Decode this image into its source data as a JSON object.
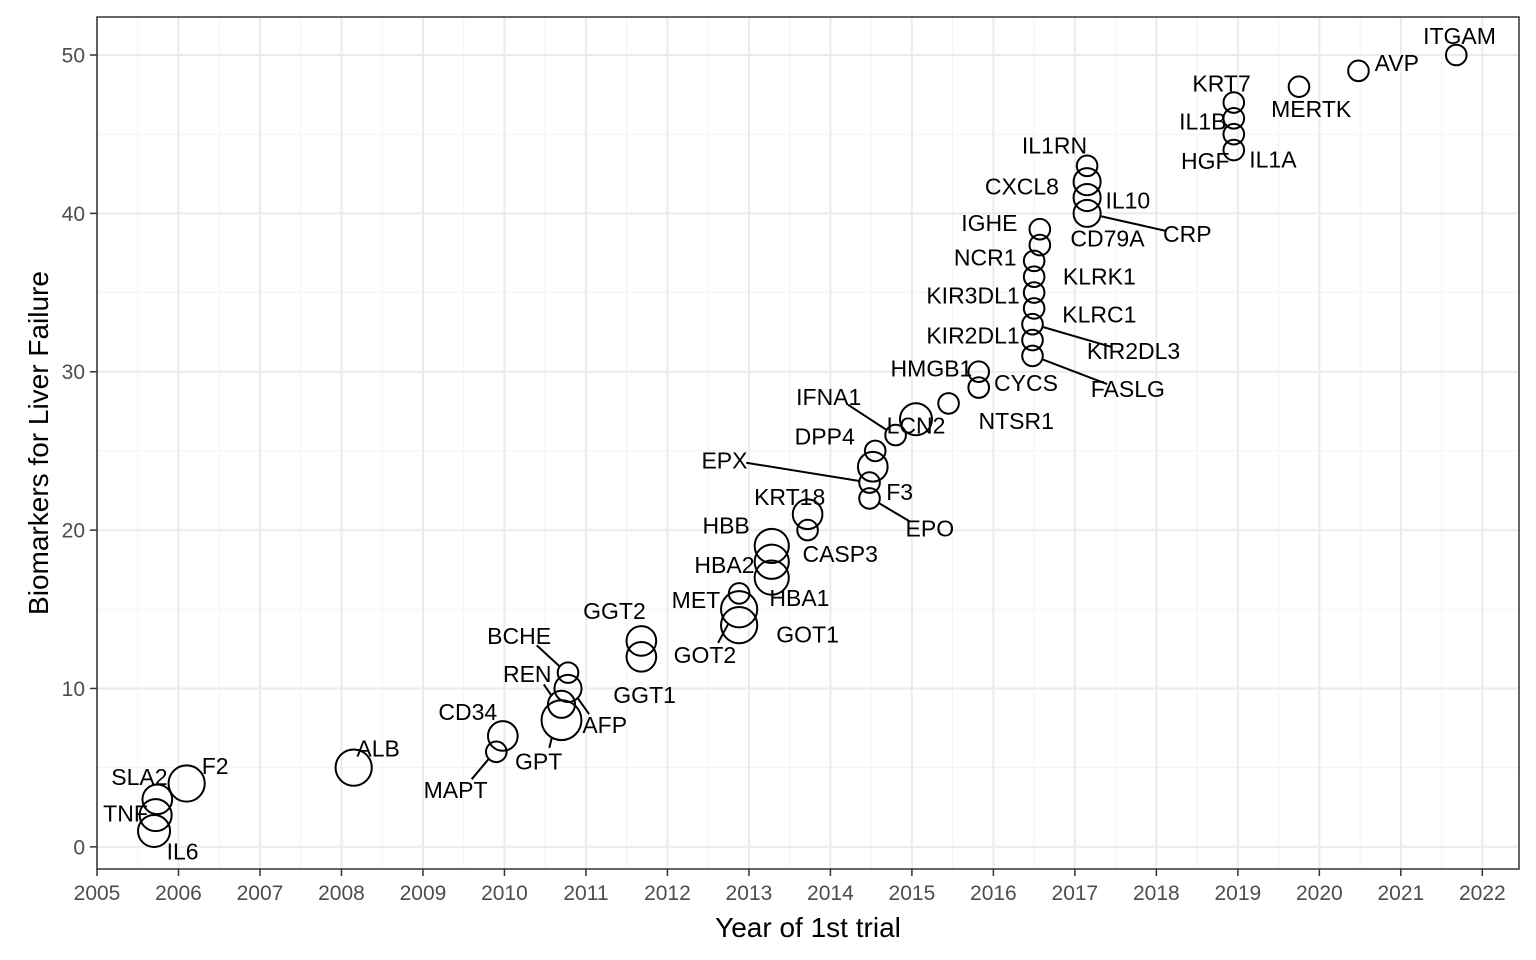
{
  "chart_data": {
    "type": "scatter",
    "xlabel": "Year of 1st trial",
    "ylabel": "Biomarkers for Liver Failure",
    "xlim": [
      2005,
      2022.45
    ],
    "ylim": [
      -1.4,
      52.4
    ],
    "x_ticks": [
      2005,
      2006,
      2007,
      2008,
      2009,
      2010,
      2011,
      2012,
      2013,
      2014,
      2015,
      2016,
      2017,
      2018,
      2019,
      2020,
      2021,
      2022
    ],
    "y_ticks": [
      0,
      10,
      20,
      30,
      40,
      50
    ],
    "grid": true,
    "point_size_meaning": "relative marker size",
    "points": [
      {
        "label": "IL6",
        "x": 2005.7,
        "y": 1,
        "size": 3,
        "lx": 2006.05,
        "ly": -0.3,
        "anchor": "middle"
      },
      {
        "label": "TNF",
        "x": 2005.72,
        "y": 2,
        "size": 3,
        "lx": 2005.35,
        "ly": 2.1,
        "anchor": "middle"
      },
      {
        "label": "SLA2",
        "x": 2005.74,
        "y": 3,
        "size": 2.5,
        "lx": 2005.52,
        "ly": 4.4,
        "anchor": "middle"
      },
      {
        "label": "F2",
        "x": 2006.1,
        "y": 4,
        "size": 4,
        "lx": 2006.45,
        "ly": 5.1,
        "anchor": "middle"
      },
      {
        "label": "ALB",
        "x": 2008.15,
        "y": 5,
        "size": 4,
        "lx": 2008.45,
        "ly": 6.2,
        "anchor": "middle"
      },
      {
        "label": "MAPT",
        "x": 2009.9,
        "y": 6,
        "size": 1,
        "lx": 2009.4,
        "ly": 3.6,
        "anchor": "middle",
        "leader": true
      },
      {
        "label": "CD34",
        "x": 2009.98,
        "y": 7,
        "size": 2.5,
        "lx": 2009.55,
        "ly": 8.5,
        "anchor": "middle"
      },
      {
        "label": "GPT",
        "x": 2010.7,
        "y": 8,
        "size": 5,
        "lx": 2010.42,
        "ly": 5.4,
        "anchor": "middle",
        "leader": true
      },
      {
        "label": "REN",
        "x": 2010.7,
        "y": 9,
        "size": 2,
        "lx": 2010.28,
        "ly": 10.9,
        "anchor": "middle",
        "leader": true
      },
      {
        "label": "AFP",
        "x": 2010.78,
        "y": 10,
        "size": 2,
        "lx": 2011.23,
        "ly": 7.7,
        "anchor": "middle",
        "leader": true
      },
      {
        "label": "BCHE",
        "x": 2010.78,
        "y": 11,
        "size": 1,
        "lx": 2010.18,
        "ly": 13.3,
        "anchor": "middle",
        "leader": true
      },
      {
        "label": "GGT1",
        "x": 2011.68,
        "y": 12,
        "size": 2.5,
        "lx": 2011.72,
        "ly": 9.6,
        "anchor": "middle"
      },
      {
        "label": "GGT2",
        "x": 2011.68,
        "y": 13,
        "size": 2.5,
        "lx": 2011.35,
        "ly": 14.9,
        "anchor": "middle"
      },
      {
        "label": "GOT1",
        "x": 2012.88,
        "y": 14,
        "size": 4,
        "lx": 2013.72,
        "ly": 13.4,
        "anchor": "middle"
      },
      {
        "label": "GOT2",
        "x": 2012.88,
        "y": 15,
        "size": 4,
        "lx": 2012.46,
        "ly": 12.1,
        "anchor": "middle",
        "leader": true
      },
      {
        "label": "MET",
        "x": 2012.88,
        "y": 16,
        "size": 1,
        "lx": 2012.35,
        "ly": 15.6,
        "anchor": "middle"
      },
      {
        "label": "HBA1",
        "x": 2013.28,
        "y": 17,
        "size": 3.5,
        "lx": 2013.62,
        "ly": 15.7,
        "anchor": "middle"
      },
      {
        "label": "HBA2",
        "x": 2013.28,
        "y": 18,
        "size": 3.5,
        "lx": 2012.7,
        "ly": 17.8,
        "anchor": "middle"
      },
      {
        "label": "HBB",
        "x": 2013.28,
        "y": 19,
        "size": 3.5,
        "lx": 2012.72,
        "ly": 20.3,
        "anchor": "middle"
      },
      {
        "label": "CASP3",
        "x": 2013.72,
        "y": 20,
        "size": 1,
        "lx": 2014.12,
        "ly": 18.5,
        "anchor": "middle"
      },
      {
        "label": "KRT18",
        "x": 2013.72,
        "y": 21,
        "size": 2.5,
        "lx": 2013.5,
        "ly": 22.1,
        "anchor": "middle"
      },
      {
        "label": "EPO",
        "x": 2014.48,
        "y": 22,
        "size": 1,
        "lx": 2015.22,
        "ly": 20.1,
        "anchor": "middle",
        "leader": true
      },
      {
        "label": "EPX",
        "x": 2014.48,
        "y": 23,
        "size": 1,
        "lx": 2012.7,
        "ly": 24.4,
        "anchor": "middle",
        "leader": true
      },
      {
        "label": "F3",
        "x": 2014.52,
        "y": 24,
        "size": 2.5,
        "lx": 2014.85,
        "ly": 22.4,
        "anchor": "middle"
      },
      {
        "label": "DPP4",
        "x": 2014.55,
        "y": 25,
        "size": 1,
        "lx": 2013.93,
        "ly": 25.9,
        "anchor": "middle"
      },
      {
        "label": "IFNA1",
        "x": 2014.8,
        "y": 26,
        "size": 1,
        "lx": 2013.98,
        "ly": 28.4,
        "anchor": "middle",
        "leader": true
      },
      {
        "label": "LCN2",
        "x": 2015.05,
        "y": 27,
        "size": 3,
        "lx": 2015.05,
        "ly": 26.6,
        "anchor": "middle"
      },
      {
        "label": "NTSR1",
        "x": 2015.45,
        "y": 28,
        "size": 1,
        "lx": 2016.28,
        "ly": 26.9,
        "anchor": "middle"
      },
      {
        "label": "CYCS",
        "x": 2015.82,
        "y": 29,
        "size": 1,
        "lx": 2016.4,
        "ly": 29.3,
        "anchor": "middle"
      },
      {
        "label": "HMGB1",
        "x": 2015.82,
        "y": 30,
        "size": 1,
        "lx": 2015.24,
        "ly": 30.2,
        "anchor": "middle"
      },
      {
        "label": "FASLG",
        "x": 2016.48,
        "y": 31,
        "size": 1,
        "lx": 2017.65,
        "ly": 28.9,
        "anchor": "middle",
        "leader": true
      },
      {
        "label": "KIR2DL3",
        "x": 2016.48,
        "y": 33,
        "size": 1,
        "lx": 2017.72,
        "ly": 31.3,
        "anchor": "middle",
        "leader": true
      },
      {
        "label": "KIR2DL1",
        "x": 2016.48,
        "y": 32,
        "size": 1,
        "lx": 2015.75,
        "ly": 32.3,
        "anchor": "middle"
      },
      {
        "label": "KLRC1",
        "x": 2016.5,
        "y": 34,
        "size": 1,
        "lx": 2017.3,
        "ly": 33.6,
        "anchor": "middle"
      },
      {
        "label": "KIR3DL1",
        "x": 2016.5,
        "y": 35,
        "size": 1,
        "lx": 2015.75,
        "ly": 34.8,
        "anchor": "middle"
      },
      {
        "label": "KLRK1",
        "x": 2016.5,
        "y": 36,
        "size": 1,
        "lx": 2017.3,
        "ly": 36.0,
        "anchor": "middle"
      },
      {
        "label": "NCR1",
        "x": 2016.5,
        "y": 37,
        "size": 1,
        "lx": 2015.9,
        "ly": 37.2,
        "anchor": "middle"
      },
      {
        "label": "CD79A",
        "x": 2016.57,
        "y": 38,
        "size": 1,
        "lx": 2017.4,
        "ly": 38.4,
        "anchor": "middle"
      },
      {
        "label": "IGHE",
        "x": 2016.57,
        "y": 39,
        "size": 1,
        "lx": 2015.95,
        "ly": 39.4,
        "anchor": "middle"
      },
      {
        "label": "CRP",
        "x": 2017.15,
        "y": 40,
        "size": 2,
        "lx": 2018.38,
        "ly": 38.7,
        "anchor": "middle",
        "leader": true
      },
      {
        "label": "IL10",
        "x": 2017.15,
        "y": 41,
        "size": 2,
        "lx": 2017.65,
        "ly": 40.8,
        "anchor": "middle"
      },
      {
        "label": "CXCL8",
        "x": 2017.15,
        "y": 42,
        "size": 2,
        "lx": 2016.35,
        "ly": 41.7,
        "anchor": "middle"
      },
      {
        "label": "IL1RN",
        "x": 2017.15,
        "y": 43,
        "size": 1,
        "lx": 2016.75,
        "ly": 44.3,
        "anchor": "middle"
      },
      {
        "label": "HGF",
        "x": 2018.95,
        "y": 44,
        "size": 1,
        "lx": 2018.6,
        "ly": 43.3,
        "anchor": "middle"
      },
      {
        "label": "IL1A",
        "x": 2018.95,
        "y": 45,
        "size": 1,
        "lx": 2019.43,
        "ly": 43.4,
        "anchor": "middle"
      },
      {
        "label": "IL1B",
        "x": 2018.95,
        "y": 46,
        "size": 1,
        "lx": 2018.57,
        "ly": 45.8,
        "anchor": "middle"
      },
      {
        "label": "KRT7",
        "x": 2018.95,
        "y": 47,
        "size": 1,
        "lx": 2018.8,
        "ly": 48.2,
        "anchor": "middle"
      },
      {
        "label": "MERTK",
        "x": 2019.75,
        "y": 48,
        "size": 1,
        "lx": 2019.9,
        "ly": 46.6,
        "anchor": "middle"
      },
      {
        "label": "AVP",
        "x": 2020.48,
        "y": 49,
        "size": 1,
        "lx": 2020.95,
        "ly": 49.5,
        "anchor": "middle"
      },
      {
        "label": "ITGAM",
        "x": 2021.68,
        "y": 50,
        "size": 1,
        "lx": 2021.72,
        "ly": 51.2,
        "anchor": "middle"
      }
    ]
  }
}
